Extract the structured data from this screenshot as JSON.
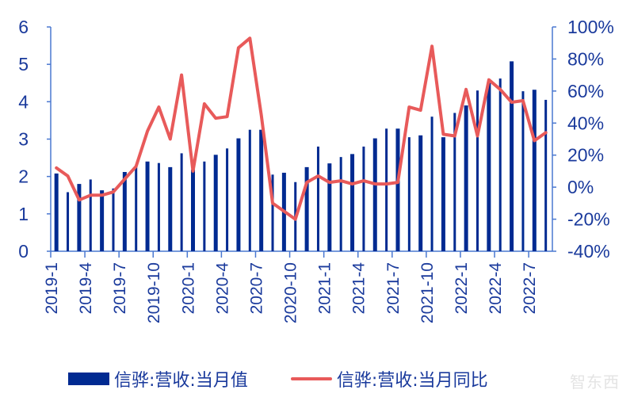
{
  "chart_data": {
    "type": "bar+line",
    "title": "",
    "xlabel": "",
    "ylabel_left": "",
    "ylabel_right": "",
    "categories": [
      "2019-1",
      "2019-2",
      "2019-3",
      "2019-4",
      "2019-5",
      "2019-6",
      "2019-7",
      "2019-8",
      "2019-9",
      "2019-10",
      "2019-11",
      "2019-12",
      "2020-1",
      "2020-2",
      "2020-3",
      "2020-4",
      "2020-5",
      "2020-6",
      "2020-7",
      "2020-8",
      "2020-9",
      "2020-10",
      "2020-11",
      "2020-12",
      "2021-1",
      "2021-2",
      "2021-3",
      "2021-4",
      "2021-5",
      "2021-6",
      "2021-7",
      "2021-8",
      "2021-9",
      "2021-10",
      "2021-11",
      "2021-12",
      "2022-1",
      "2022-2",
      "2022-3",
      "2022-4",
      "2022-5",
      "2022-6",
      "2022-7",
      "2022-8"
    ],
    "x_tick_labels": [
      "2019-1",
      "2019-4",
      "2019-7",
      "2019-10",
      "2020-1",
      "2020-4",
      "2020-7",
      "2020-10",
      "2021-1",
      "2021-4",
      "2021-7",
      "2021-10",
      "2022-1",
      "2022-4",
      "2022-7"
    ],
    "series": [
      {
        "name": "信骅:营收:当月值",
        "type": "bar",
        "axis": "left",
        "color": "#002a91",
        "values": [
          2.08,
          1.58,
          1.8,
          1.92,
          1.63,
          1.68,
          2.12,
          2.25,
          2.4,
          2.36,
          2.25,
          2.62,
          2.18,
          2.4,
          2.58,
          2.75,
          3.02,
          3.25,
          3.25,
          2.05,
          2.1,
          1.85,
          2.25,
          2.8,
          2.35,
          2.52,
          2.6,
          2.8,
          3.02,
          3.28,
          3.28,
          3.05,
          3.1,
          3.6,
          3.05,
          3.7,
          3.9,
          4.3,
          4.5,
          4.62,
          5.08,
          4.28,
          4.32,
          4.05
        ]
      },
      {
        "name": "信骅:营收:当月同比",
        "type": "line",
        "axis": "right",
        "unit": "%",
        "color": "#e85a5a",
        "values": [
          12,
          7,
          -8,
          -5,
          -5,
          -3,
          5,
          13,
          35,
          50,
          30,
          70,
          10,
          52,
          43,
          44,
          87,
          93,
          45,
          -10,
          -15,
          -20,
          3,
          7,
          3,
          4,
          2,
          4,
          2,
          2,
          3,
          50,
          48,
          88,
          33,
          32,
          61,
          32,
          67,
          61,
          53,
          54,
          29,
          34
        ]
      }
    ],
    "ylim_left": [
      0,
      6
    ],
    "yticks_left": [
      0,
      1,
      2,
      3,
      4,
      5,
      6
    ],
    "ylim_right": [
      -40,
      100
    ],
    "yticks_right": [
      "-40%",
      "-20%",
      "0%",
      "20%",
      "40%",
      "60%",
      "80%",
      "100%"
    ],
    "grid": false,
    "legend_position": "bottom"
  },
  "legend": {
    "bar_label": "信骅:营收:当月值",
    "line_label": "信骅:营收:当月同比"
  },
  "watermark": "智东西"
}
